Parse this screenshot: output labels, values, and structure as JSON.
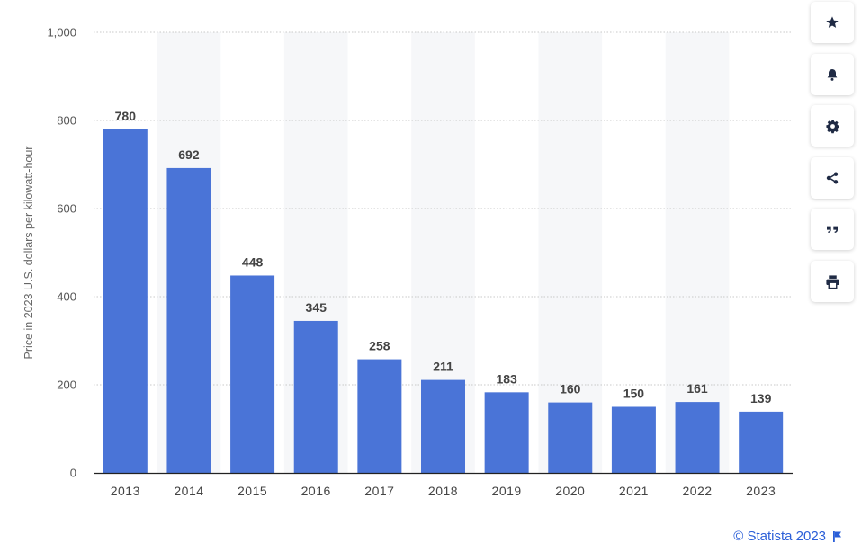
{
  "chart_data": {
    "type": "bar",
    "title": "",
    "xlabel": "",
    "ylabel": "Price in 2023 U.S. dollars per kilowatt-hour",
    "categories": [
      "2013",
      "2014",
      "2015",
      "2016",
      "2017",
      "2018",
      "2019",
      "2020",
      "2021",
      "2022",
      "2023"
    ],
    "values": [
      780,
      692,
      448,
      345,
      258,
      211,
      183,
      160,
      150,
      161,
      139
    ],
    "data_labels": [
      "780",
      "692",
      "448",
      "345",
      "258",
      "211",
      "183",
      "160",
      "150",
      "161",
      "139"
    ],
    "ylim": [
      0,
      1000
    ],
    "yticks": [
      0,
      200,
      400,
      600,
      800,
      1000
    ],
    "ytick_labels": [
      "0",
      "200",
      "400",
      "600",
      "800",
      "1,000"
    ],
    "grid": true,
    "bar_color": "#4a74d7",
    "band_color": "#f6f7f9"
  },
  "toolbar": {
    "items": [
      {
        "icon": "star-icon",
        "name": "favorite-button"
      },
      {
        "icon": "bell-icon",
        "name": "notification-button"
      },
      {
        "icon": "gear-icon",
        "name": "settings-button"
      },
      {
        "icon": "share-icon",
        "name": "share-button"
      },
      {
        "icon": "quote-icon",
        "name": "cite-button"
      },
      {
        "icon": "print-icon",
        "name": "print-button"
      }
    ]
  },
  "footer": {
    "credit": "© Statista 2023",
    "credit_color": "#2b5fd8"
  }
}
